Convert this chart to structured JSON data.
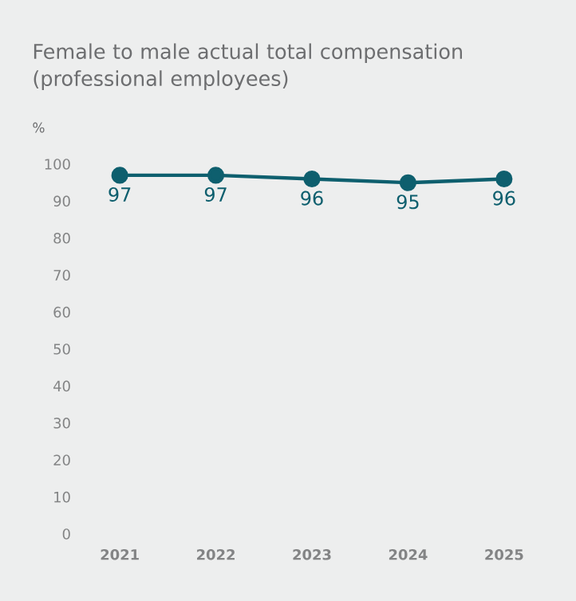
{
  "chart_data": {
    "type": "line",
    "title": "Female to male actual total compensation (professional employees)",
    "ylabel": "%",
    "categories": [
      "2021",
      "2022",
      "2023",
      "2024",
      "2025"
    ],
    "values": [
      97,
      97,
      96,
      95,
      96
    ],
    "color": "#0e5f6e",
    "marker": "circle",
    "data_labels": true,
    "ylim": [
      0,
      100
    ],
    "yticks": [
      0,
      10,
      20,
      30,
      40,
      50,
      60,
      70,
      80,
      90,
      100
    ]
  }
}
